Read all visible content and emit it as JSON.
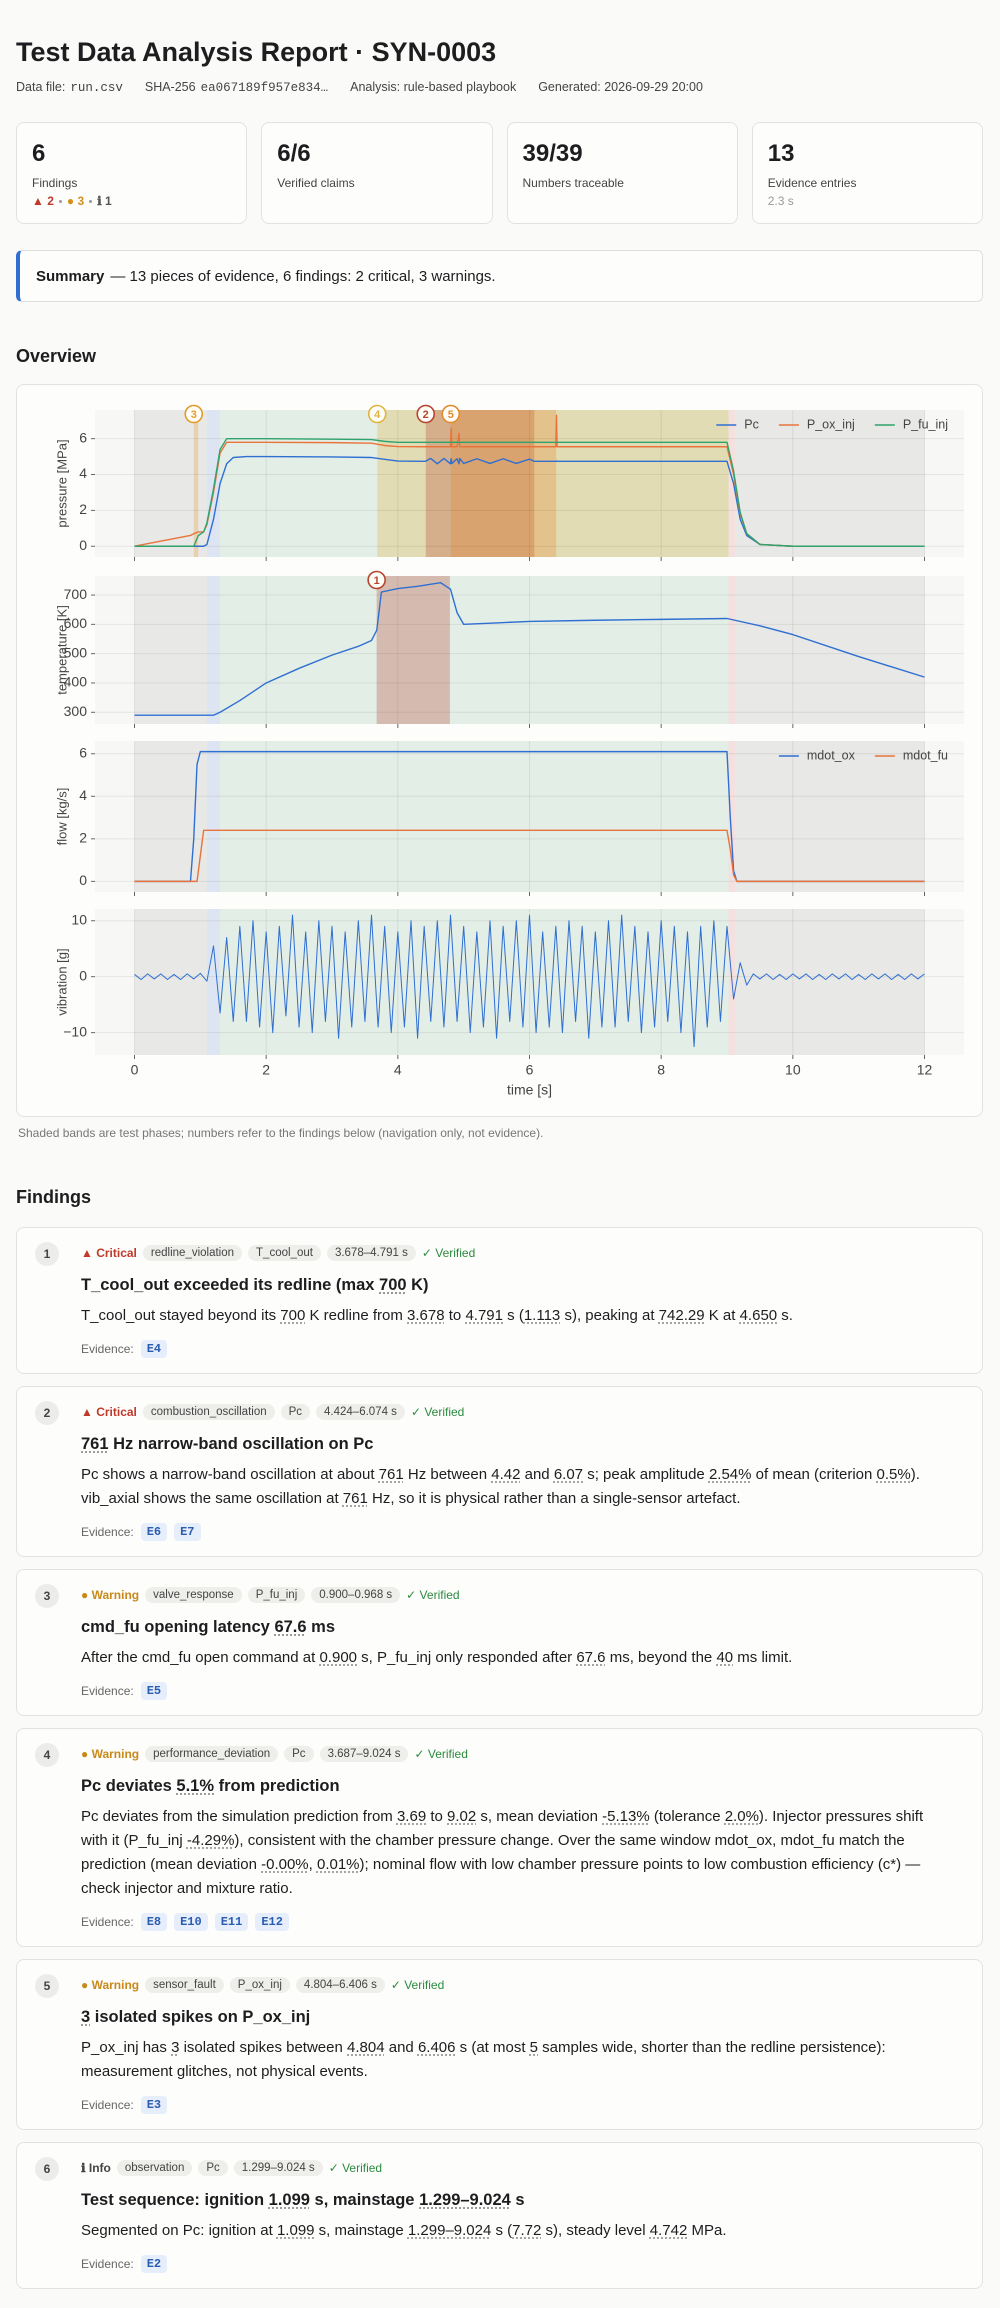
{
  "header": {
    "title": "Test Data Analysis Report · SYN-0003",
    "meta": [
      {
        "label": "Data file:",
        "code": "run.csv"
      },
      {
        "label": "SHA-256",
        "code": "ea067189f957e834…"
      },
      {
        "label": "Analysis: rule-based playbook"
      },
      {
        "label": "Generated: 2026-09-29 20:00"
      }
    ]
  },
  "stats": [
    {
      "value": "6",
      "label": "Findings",
      "breakdown": [
        {
          "text": "▲ 2",
          "color": "#c0392b"
        },
        {
          "text": "● 3",
          "color": "#d4901f"
        },
        {
          "text": "ℹ 1",
          "color": "#555555"
        }
      ]
    },
    {
      "value": "6/6",
      "label": "Verified claims"
    },
    {
      "value": "39/39",
      "label": "Numbers traceable"
    },
    {
      "value": "13",
      "label": "Evidence entries",
      "note": "2.3 s"
    }
  ],
  "summary": {
    "lead": "Summary",
    "text": "— 13 pieces of evidence, 6 findings: 2 critical, 3 warnings."
  },
  "overview": {
    "heading": "Overview",
    "caption": "Shaded bands are test phases; numbers refer to the findings below (navigation only, not evidence)."
  },
  "chart_data": [
    {
      "type": "line",
      "ylabel": "pressure [MPa]",
      "xlim": [
        -0.6,
        12.6
      ],
      "ylim": [
        -0.6,
        7.6
      ],
      "yticks": [
        0,
        2,
        4,
        6
      ],
      "grid": true,
      "legend": "upper right",
      "phases": [
        {
          "start": 0,
          "end": 1.099,
          "color": "rgba(0,0,0,0.06)"
        },
        {
          "start": 1.099,
          "end": 1.299,
          "color": "rgba(70,120,230,0.14)"
        },
        {
          "start": 1.299,
          "end": 9.024,
          "color": "rgba(60,170,110,0.10)"
        },
        {
          "start": 9.024,
          "end": 9.124,
          "color": "rgba(230,90,90,0.14)"
        },
        {
          "start": 9.124,
          "end": 12,
          "color": "rgba(0,0,0,0.06)"
        }
      ],
      "markers": [
        {
          "label": "3",
          "start": 0.9,
          "end": 0.968,
          "color": "#e39b2d"
        },
        {
          "label": "4",
          "start": 3.687,
          "end": 9.024,
          "color": "#e0b440"
        },
        {
          "label": "2",
          "start": 4.424,
          "end": 6.074,
          "color": "#b5452f"
        },
        {
          "label": "5",
          "start": 4.804,
          "end": 6.406,
          "color": "#e38a2e"
        }
      ],
      "x": [
        0,
        0.85,
        0.9,
        0.97,
        1.05,
        1.1,
        1.2,
        1.3,
        1.4,
        1.5,
        1.7,
        2.0,
        3.0,
        3.6,
        3.8,
        4.0,
        4.42,
        4.5,
        4.6,
        4.7,
        4.8,
        4.81,
        4.82,
        4.9,
        4.93,
        4.94,
        5.0,
        5.2,
        5.4,
        5.6,
        5.8,
        6.0,
        6.07,
        6.4,
        6.41,
        6.42,
        7.0,
        8.0,
        9.0,
        9.1,
        9.2,
        9.3,
        9.5,
        10,
        12
      ],
      "series": [
        {
          "name": "Pc",
          "color": "#2f6fd1",
          "values": [
            0,
            0,
            0,
            0,
            0,
            0.1,
            1.5,
            3.5,
            4.6,
            4.95,
            5.0,
            5.0,
            4.98,
            4.95,
            4.85,
            4.75,
            4.74,
            4.9,
            4.6,
            4.9,
            4.6,
            4.88,
            4.62,
            4.88,
            4.6,
            4.9,
            4.62,
            4.88,
            4.62,
            4.88,
            4.62,
            4.86,
            4.74,
            4.74,
            4.75,
            4.74,
            4.74,
            4.74,
            4.74,
            3.5,
            1.5,
            0.6,
            0.1,
            0,
            0
          ]
        },
        {
          "name": "P_ox_inj",
          "color": "#e8743b",
          "values": [
            0,
            0.6,
            0.7,
            0.8,
            0.8,
            1.2,
            3.0,
            5.2,
            5.8,
            5.8,
            5.8,
            5.8,
            5.78,
            5.75,
            5.62,
            5.56,
            5.55,
            5.55,
            5.55,
            5.55,
            5.55,
            6.6,
            5.55,
            5.55,
            6.3,
            5.55,
            5.55,
            5.55,
            5.55,
            5.55,
            5.55,
            5.55,
            5.55,
            5.55,
            7.3,
            5.55,
            5.55,
            5.55,
            5.55,
            4.0,
            1.8,
            0.7,
            0.1,
            0,
            0
          ]
        },
        {
          "name": "P_fu_inj",
          "color": "#2fa36b",
          "values": [
            0,
            0,
            0,
            0.6,
            0.8,
            1.3,
            3.2,
            5.4,
            6.0,
            6.0,
            6.0,
            6.0,
            5.97,
            5.95,
            5.85,
            5.8,
            5.8,
            5.8,
            5.8,
            5.8,
            5.8,
            5.8,
            5.8,
            5.8,
            5.8,
            5.8,
            5.8,
            5.8,
            5.8,
            5.8,
            5.8,
            5.8,
            5.8,
            5.8,
            5.8,
            5.8,
            5.8,
            5.8,
            5.8,
            4.2,
            1.9,
            0.7,
            0.1,
            0,
            0
          ]
        }
      ]
    },
    {
      "type": "line",
      "ylabel": "temperature [K]",
      "xlim": [
        -0.6,
        12.6
      ],
      "ylim": [
        260,
        765
      ],
      "yticks": [
        300,
        400,
        500,
        600,
        700
      ],
      "grid": true,
      "markers": [
        {
          "label": "1",
          "start": 3.678,
          "end": 4.791,
          "color": "#b5452f"
        }
      ],
      "x": [
        0,
        1.2,
        1.3,
        1.6,
        2.0,
        2.5,
        3.0,
        3.4,
        3.6,
        3.68,
        3.75,
        4.0,
        4.3,
        4.65,
        4.8,
        4.9,
        5.0,
        5.5,
        6.0,
        7.0,
        8.0,
        9.0,
        9.5,
        10,
        11,
        12
      ],
      "series": [
        {
          "color": "#2f6fd1",
          "values": [
            290,
            290,
            300,
            340,
            400,
            450,
            495,
            525,
            545,
            580,
            710,
            722,
            730,
            742,
            720,
            640,
            600,
            605,
            610,
            614,
            617,
            620,
            595,
            565,
            490,
            420
          ]
        }
      ]
    },
    {
      "type": "line",
      "ylabel": "flow [kg/s]",
      "xlim": [
        -0.6,
        12.6
      ],
      "ylim": [
        -0.5,
        6.6
      ],
      "yticks": [
        0,
        2,
        4,
        6
      ],
      "grid": true,
      "legend": "upper right",
      "x": [
        0,
        0.85,
        0.9,
        0.95,
        1.0,
        1.05,
        1.1,
        3,
        5,
        7,
        9.0,
        9.05,
        9.1,
        9.15,
        12
      ],
      "series": [
        {
          "name": "mdot_ox",
          "color": "#2f6fd1",
          "values": [
            0,
            0,
            2.0,
            5.5,
            6.1,
            6.1,
            6.1,
            6.1,
            6.1,
            6.1,
            6.1,
            3.0,
            0.5,
            0,
            0
          ]
        },
        {
          "name": "mdot_fu",
          "color": "#e8743b",
          "values": [
            0,
            0,
            0,
            0,
            1.2,
            2.4,
            2.4,
            2.4,
            2.4,
            2.4,
            2.4,
            1.5,
            0.3,
            0,
            0
          ]
        }
      ]
    },
    {
      "type": "line",
      "ylabel": "vibration [g]",
      "xlabel": "time [s]",
      "xlim": [
        -0.6,
        12.6
      ],
      "ylim": [
        -14,
        12.1
      ],
      "yticks": [
        {
          "value": -10,
          "label": "−10"
        },
        0,
        10
      ],
      "xticks": [
        0,
        2,
        4,
        6,
        8,
        10,
        12
      ],
      "grid": true,
      "x": [
        0,
        0.1,
        0.2,
        0.3,
        0.4,
        0.5,
        0.6,
        0.7,
        0.8,
        0.9,
        1.0,
        1.1,
        1.2,
        1.3,
        1.4,
        1.5,
        1.6,
        1.7,
        1.8,
        1.9,
        2.0,
        2.1,
        2.2,
        2.3,
        2.4,
        2.5,
        2.6,
        2.7,
        2.8,
        2.9,
        3.0,
        3.1,
        3.2,
        3.3,
        3.4,
        3.5,
        3.6,
        3.7,
        3.8,
        3.9,
        4.0,
        4.1,
        4.2,
        4.3,
        4.4,
        4.5,
        4.6,
        4.7,
        4.8,
        4.9,
        5.0,
        5.1,
        5.2,
        5.3,
        5.4,
        5.5,
        5.6,
        5.7,
        5.8,
        5.9,
        6.0,
        6.1,
        6.2,
        6.3,
        6.4,
        6.5,
        6.6,
        6.7,
        6.8,
        6.9,
        7.0,
        7.1,
        7.2,
        7.3,
        7.4,
        7.5,
        7.6,
        7.7,
        7.8,
        7.9,
        8.0,
        8.1,
        8.2,
        8.3,
        8.4,
        8.5,
        8.6,
        8.7,
        8.8,
        8.9,
        9.0,
        9.1,
        9.2,
        9.3,
        9.4,
        9.5,
        9.6,
        9.7,
        9.8,
        9.9,
        10.0,
        10.1,
        10.2,
        10.3,
        10.4,
        10.5,
        10.6,
        10.7,
        10.8,
        10.9,
        11.0,
        11.1,
        11.2,
        11.3,
        11.4,
        11.5,
        11.6,
        11.7,
        11.8,
        11.9,
        12.0
      ],
      "series": [
        {
          "color": "#2f6fd1",
          "values": [
            0.4,
            -0.5,
            0.5,
            -0.4,
            0.5,
            -0.5,
            0.4,
            -0.5,
            0.5,
            -0.4,
            0.6,
            -0.8,
            5.5,
            -6.5,
            7.0,
            -8.0,
            9,
            -8,
            10,
            -9,
            8,
            -10,
            9,
            -7,
            11,
            -9,
            8,
            -10,
            10,
            -8,
            9,
            -11,
            8,
            -9,
            10,
            -8,
            11,
            -9,
            9,
            -10,
            8,
            -9,
            10,
            -11,
            9,
            -8,
            10,
            -9,
            11,
            -8,
            9,
            -10,
            8,
            -9,
            10,
            -11,
            9,
            -8,
            10,
            -9,
            11,
            -10,
            8,
            -9,
            9,
            -10,
            10,
            -8,
            9,
            -11,
            8,
            -9,
            10,
            -9,
            11,
            -8,
            9,
            -10,
            8,
            -9,
            10,
            -8,
            9,
            -10,
            8,
            -12.5,
            9,
            -9,
            10,
            -8,
            9,
            -4,
            2.5,
            -1.5,
            0.5,
            -0.4,
            0.5,
            -0.5,
            0.4,
            -0.5,
            0.5,
            -0.4,
            0.5,
            -0.5,
            0.4,
            -0.5,
            0.5,
            -0.4,
            0.5,
            -0.5,
            0.4,
            -0.5,
            0.5,
            -0.4,
            0.5,
            -0.5,
            0.4,
            -0.5,
            0.5,
            -0.4,
            0.5
          ]
        }
      ]
    }
  ],
  "findings": {
    "heading": "Findings",
    "verified": "✓ Verified",
    "evidence_label": "Evidence:",
    "items": [
      {
        "number": "1",
        "severity": "▲ Critical",
        "color": "#c0392b",
        "tags": [
          "redline_violation",
          "T_cool_out",
          "3.678–4.791 s"
        ],
        "title": [
          "T_cool_out exceeded its redline (max ",
          {
            "num": "700"
          },
          " K)"
        ],
        "body": [
          "T_cool_out stayed beyond its ",
          {
            "num": "700"
          },
          " K redline from ",
          {
            "num": "3.678"
          },
          " to ",
          {
            "num": "4.791"
          },
          " s (",
          {
            "num": "1.113"
          },
          " s), peaking at ",
          {
            "num": "742.29"
          },
          " K at ",
          {
            "num": "4.650"
          },
          " s."
        ],
        "evidence": [
          "E4"
        ]
      },
      {
        "number": "2",
        "severity": "▲ Critical",
        "color": "#c0392b",
        "tags": [
          "combustion_oscillation",
          "Pc",
          "4.424–6.074 s"
        ],
        "title": [
          {
            "num": "761"
          },
          " Hz narrow-band oscillation on Pc"
        ],
        "body": [
          "Pc shows a narrow-band oscillation at about ",
          {
            "num": "761"
          },
          " Hz between ",
          {
            "num": "4.42"
          },
          " and ",
          {
            "num": "6.07"
          },
          " s; peak amplitude ",
          {
            "num": "2.54%"
          },
          " of mean (criterion ",
          {
            "num": "0.5%"
          },
          "). vib_axial shows the same oscillation at ",
          {
            "num": "761"
          },
          " Hz, so it is physical rather than a single-sensor artefact."
        ],
        "evidence": [
          "E6",
          "E7"
        ]
      },
      {
        "number": "3",
        "severity": "● Warning",
        "color": "#c9891a",
        "tags": [
          "valve_response",
          "P_fu_inj",
          "0.900–0.968 s"
        ],
        "title": [
          "cmd_fu opening latency ",
          {
            "num": "67.6"
          },
          " ms"
        ],
        "body": [
          "After the cmd_fu open command at ",
          {
            "num": "0.900"
          },
          " s, P_fu_inj only responded after ",
          {
            "num": "67.6"
          },
          " ms, beyond the ",
          {
            "num": "40"
          },
          " ms limit."
        ],
        "evidence": [
          "E5"
        ]
      },
      {
        "number": "4",
        "severity": "● Warning",
        "color": "#c9891a",
        "tags": [
          "performance_deviation",
          "Pc",
          "3.687–9.024 s"
        ],
        "title": [
          "Pc deviates ",
          {
            "num": "5.1%"
          },
          " from prediction"
        ],
        "body": [
          "Pc deviates from the simulation prediction from ",
          {
            "num": "3.69"
          },
          " to ",
          {
            "num": "9.02"
          },
          " s, mean deviation ",
          {
            "num": "-5.13%"
          },
          " (tolerance ",
          {
            "num": "2.0%"
          },
          "). Injector pressures shift with it (P_fu_inj ",
          {
            "num": "-4.29%"
          },
          "), consistent with the chamber pressure change. Over the same window mdot_ox, mdot_fu match the prediction (mean deviation ",
          {
            "num": "-0.00%"
          },
          ", ",
          {
            "num": "0.01%"
          },
          "); nominal flow with low chamber pressure points to low combustion efficiency (c*) — check injector and mixture ratio."
        ],
        "evidence": [
          "E8",
          "E10",
          "E11",
          "E12"
        ]
      },
      {
        "number": "5",
        "severity": "● Warning",
        "color": "#c9891a",
        "tags": [
          "sensor_fault",
          "P_ox_inj",
          "4.804–6.406 s"
        ],
        "title": [
          {
            "num": "3"
          },
          " isolated spikes on P_ox_inj"
        ],
        "body": [
          "P_ox_inj has ",
          {
            "num": "3"
          },
          " isolated spikes between ",
          {
            "num": "4.804"
          },
          " and ",
          {
            "num": "6.406"
          },
          " s (at most ",
          {
            "num": "5"
          },
          " samples wide, shorter than the redline persistence): measurement glitches, not physical events."
        ],
        "evidence": [
          "E3"
        ]
      },
      {
        "number": "6",
        "severity": "ℹ Info",
        "color": "#444444",
        "tags": [
          "observation",
          "Pc",
          "1.299–9.024 s"
        ],
        "title": [
          "Test sequence: ignition ",
          {
            "num": "1.099"
          },
          " s, mainstage ",
          {
            "num": "1.299–9.024"
          },
          " s"
        ],
        "body": [
          "Segmented on Pc: ignition at ",
          {
            "num": "1.099"
          },
          " s, mainstage ",
          {
            "num": "1.299–9.024"
          },
          " s (",
          {
            "num": "7.72"
          },
          " s), steady level ",
          {
            "num": "4.742"
          },
          " MPa."
        ],
        "evidence": [
          "E2"
        ]
      }
    ]
  }
}
